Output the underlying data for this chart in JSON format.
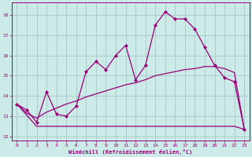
{
  "xlabel": "Windchill (Refroidissement éolien,°C)",
  "bg_color": "#cceae7",
  "grid_color": "#aacccc",
  "line_color": "#990077",
  "xlim": [
    -0.5,
    23.5
  ],
  "ylim": [
    11.8,
    18.6
  ],
  "yticks": [
    12,
    13,
    14,
    15,
    16,
    17,
    18
  ],
  "xticks": [
    0,
    1,
    2,
    3,
    4,
    5,
    6,
    7,
    8,
    9,
    10,
    11,
    12,
    13,
    14,
    15,
    16,
    17,
    18,
    19,
    20,
    21,
    22,
    23
  ],
  "line1_x": [
    0,
    1,
    2,
    3,
    4,
    5,
    6,
    7,
    8,
    9,
    10,
    11,
    12,
    13,
    14,
    15,
    16,
    17,
    18,
    19,
    20,
    21,
    22,
    23
  ],
  "line1_y": [
    13.6,
    13.3,
    12.7,
    14.2,
    13.1,
    13.0,
    13.5,
    15.2,
    15.7,
    15.3,
    16.0,
    16.5,
    14.8,
    15.5,
    17.5,
    18.15,
    17.8,
    17.8,
    17.3,
    16.4,
    15.5,
    14.9,
    14.7,
    12.35
  ],
  "line2_x": [
    0,
    1,
    2,
    3,
    4,
    5,
    6,
    7,
    8,
    9,
    10,
    11,
    12,
    13,
    14,
    15,
    16,
    17,
    18,
    19,
    20,
    21,
    22,
    23
  ],
  "line2_y": [
    13.6,
    13.15,
    12.9,
    13.2,
    13.4,
    13.6,
    13.75,
    13.95,
    14.1,
    14.25,
    14.4,
    14.55,
    14.65,
    14.8,
    15.0,
    15.1,
    15.2,
    15.3,
    15.35,
    15.45,
    15.45,
    15.35,
    15.15,
    12.35
  ],
  "line3_x": [
    0,
    1,
    2,
    3,
    13,
    14,
    15,
    16,
    17,
    18,
    19,
    20,
    21,
    22,
    23
  ],
  "line3_y": [
    13.6,
    13.05,
    12.5,
    12.5,
    12.5,
    12.5,
    12.5,
    12.5,
    12.5,
    12.5,
    12.5,
    12.5,
    12.5,
    12.5,
    12.35
  ]
}
